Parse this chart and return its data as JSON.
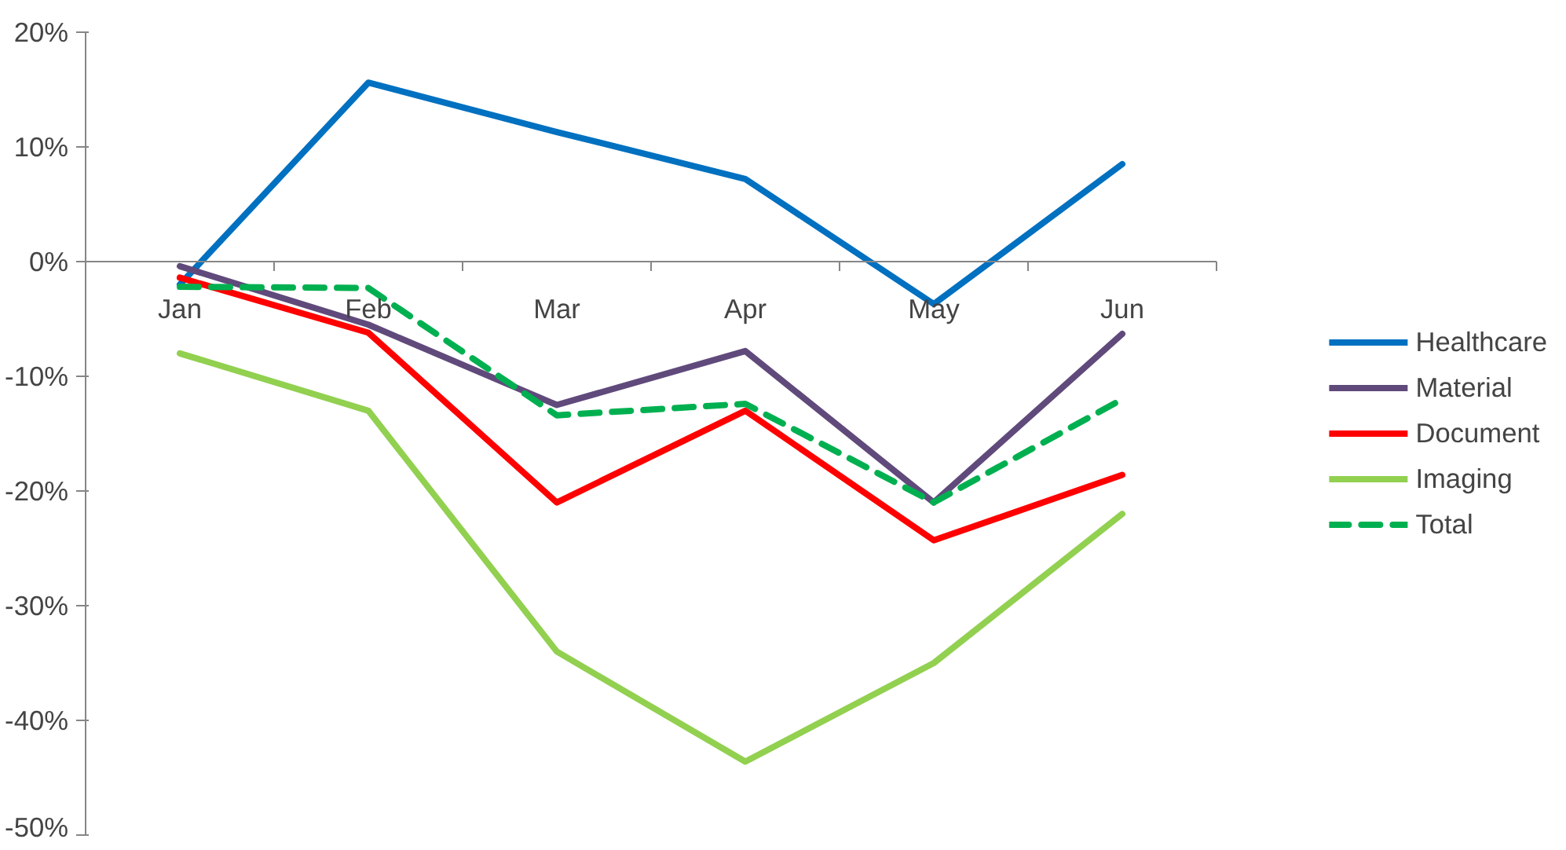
{
  "chart_data": {
    "type": "line",
    "categories": [
      "Jan",
      "Feb",
      "Mar",
      "Apr",
      "May",
      "Jun"
    ],
    "ylim": [
      -50,
      20
    ],
    "yticks": [
      {
        "value": -50,
        "label": "-50%"
      },
      {
        "value": -40,
        "label": "-40%"
      },
      {
        "value": -30,
        "label": "-30%"
      },
      {
        "value": -20,
        "label": "-20%"
      },
      {
        "value": -10,
        "label": "-10%"
      },
      {
        "value": 0,
        "label": "0%"
      },
      {
        "value": 10,
        "label": "10%"
      },
      {
        "value": 20,
        "label": "20%"
      }
    ],
    "grid": false,
    "legend": "right",
    "marker": "none",
    "series": [
      {
        "name": "Healthcare",
        "color": "#0070c0",
        "values": [
          -2,
          15.6,
          11.3,
          7.2,
          -3.7,
          8.5
        ]
      },
      {
        "name": "Material",
        "color": "#604a7b",
        "values": [
          -0.4,
          -5.5,
          -12.5,
          -7.8,
          -21,
          -6.3
        ]
      },
      {
        "name": "Document",
        "color": "#ff0000",
        "values": [
          -1.4,
          -6.2,
          -21,
          -13,
          -24.3,
          -18.6
        ]
      },
      {
        "name": "Imaging",
        "color": "#92d050",
        "values": [
          -8,
          -13,
          -34,
          -43.6,
          -35,
          -22
        ]
      },
      {
        "name": "Total",
        "color": "#00b050",
        "line_style": "dashed",
        "values": [
          -2.2,
          -2.3,
          -13.4,
          -12.4,
          -21,
          -12
        ]
      }
    ]
  }
}
